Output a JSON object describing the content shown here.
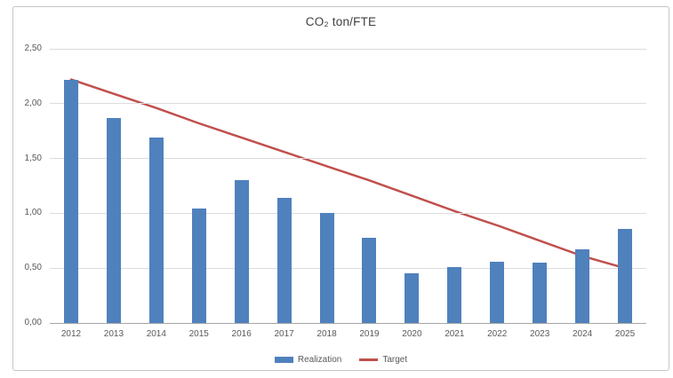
{
  "window": {
    "background": "#ffffff",
    "border_color": "#c6c6c6"
  },
  "chart_data": {
    "type": "bar",
    "title": "CO₂ ton/FTE",
    "xlabel": "",
    "ylabel": "",
    "categories": [
      "2012",
      "2013",
      "2014",
      "2015",
      "2016",
      "2017",
      "2018",
      "2019",
      "2020",
      "2021",
      "2022",
      "2023",
      "2024",
      "2025"
    ],
    "series": [
      {
        "name": "Realization",
        "type": "bar",
        "color": "#4f81bd",
        "values": [
          2.22,
          1.87,
          1.69,
          1.04,
          1.3,
          1.14,
          1.0,
          0.78,
          0.45,
          0.51,
          0.56,
          0.55,
          0.67,
          0.86
        ]
      },
      {
        "name": "Target",
        "type": "line",
        "color": "#c0504d",
        "values": [
          2.22,
          2.09,
          1.96,
          1.82,
          1.69,
          1.56,
          1.43,
          1.3,
          1.16,
          1.02,
          0.89,
          0.75,
          0.61,
          0.5
        ]
      }
    ],
    "ylim": [
      0,
      2.5
    ],
    "yticks": [
      {
        "value": 0.0,
        "label": "0,00"
      },
      {
        "value": 0.5,
        "label": "0,50"
      },
      {
        "value": 1.0,
        "label": "1,00"
      },
      {
        "value": 1.5,
        "label": "1,50"
      },
      {
        "value": 2.0,
        "label": "2,00"
      },
      {
        "value": 2.5,
        "label": "2,50"
      }
    ],
    "grid": true,
    "legend_position": "bottom",
    "colors": {
      "grid": "#dcdcdc",
      "axis": "#a6a6a6",
      "tick_text": "#595959",
      "title_text": "#404040"
    }
  }
}
